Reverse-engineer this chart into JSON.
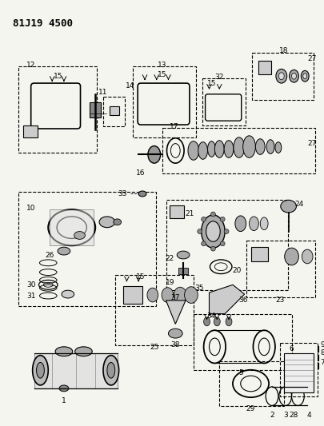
{
  "title": "81J19 4500",
  "bg_color": "#f5f5f0",
  "fig_width": 4.06,
  "fig_height": 5.33,
  "dpi": 100
}
